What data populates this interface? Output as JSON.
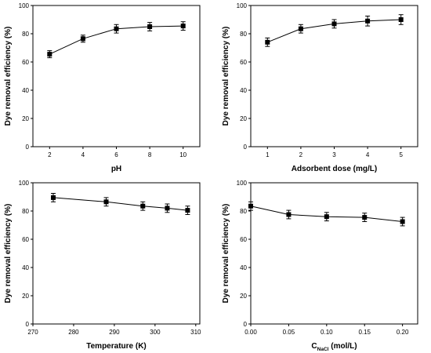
{
  "chart_data": [
    {
      "type": "line",
      "xlabel": "pH",
      "ylabel": "Dye removal efficiency (%)",
      "xlim": [
        1,
        11
      ],
      "ylim": [
        0,
        100
      ],
      "xticks": [
        "2",
        "4",
        "6",
        "8",
        "10"
      ],
      "yticks": [
        "0",
        "20",
        "40",
        "60",
        "80",
        "100"
      ],
      "series": [
        {
          "x": [
            2,
            4,
            6,
            8,
            10
          ],
          "y": [
            65.5,
            76.5,
            83.5,
            85,
            85.5
          ],
          "err": [
            2.5,
            2.5,
            3,
            3,
            3
          ]
        }
      ]
    },
    {
      "type": "line",
      "xlabel": "Adsorbent dose (mg/L)",
      "ylabel": "Dye removal efficiency (%)",
      "xlim": [
        0.5,
        5.5
      ],
      "ylim": [
        0,
        100
      ],
      "xticks": [
        "1",
        "2",
        "3",
        "4",
        "5"
      ],
      "yticks": [
        "0",
        "20",
        "40",
        "60",
        "80",
        "100"
      ],
      "series": [
        {
          "x": [
            1,
            2,
            3,
            4,
            5
          ],
          "y": [
            74,
            83.5,
            87,
            89,
            90
          ],
          "err": [
            3,
            3,
            3,
            3.5,
            3.5
          ]
        }
      ]
    },
    {
      "type": "line",
      "xlabel": "Temperature (K)",
      "ylabel": "Dye removal efficiency (%)",
      "xlim": [
        270,
        311
      ],
      "ylim": [
        0,
        100
      ],
      "xticks": [
        "270",
        "280",
        "290",
        "300",
        "310"
      ],
      "yticks": [
        "0",
        "20",
        "40",
        "60",
        "80",
        "100"
      ],
      "series": [
        {
          "x": [
            275,
            288,
            297,
            303,
            308
          ],
          "y": [
            89.5,
            86.5,
            83.5,
            82,
            80.5
          ],
          "err": [
            3,
            3,
            3,
            3,
            3
          ]
        }
      ]
    },
    {
      "type": "line",
      "xlabel": "C",
      "xlabel_sub": "NaCl",
      "xlabel_tail": " (mol/L)",
      "ylabel": "Dye removal efficiency (%)",
      "xlim": [
        0,
        0.22
      ],
      "ylim": [
        0,
        100
      ],
      "xticks": [
        "0.00",
        "0.05",
        "0.10",
        "0.15",
        "0.20"
      ],
      "yticks": [
        "0",
        "20",
        "40",
        "60",
        "80",
        "100"
      ],
      "series": [
        {
          "x": [
            0,
            0.05,
            0.1,
            0.15,
            0.2
          ],
          "y": [
            83.5,
            77.5,
            76,
            75.5,
            72.5
          ],
          "err": [
            3,
            3,
            3,
            3,
            3
          ]
        }
      ]
    }
  ]
}
